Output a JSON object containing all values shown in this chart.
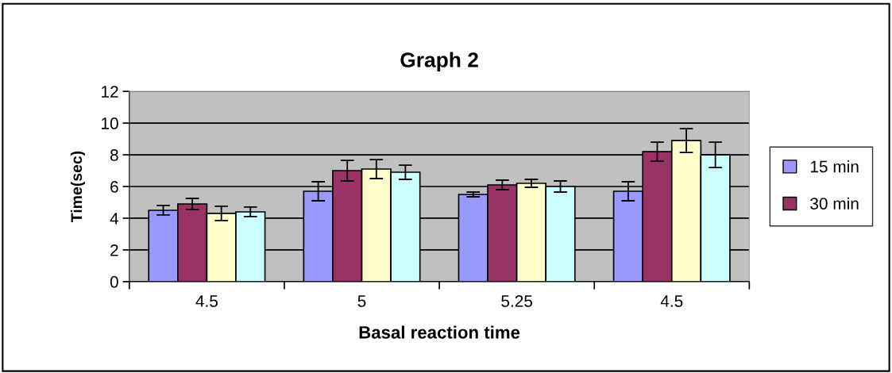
{
  "chart_data": {
    "type": "bar",
    "title": "Graph 2",
    "xlabel": "Basal reaction time",
    "ylabel": "Time(sec)",
    "categories": [
      "4.5",
      "5",
      "5.25",
      "4.5"
    ],
    "series": [
      {
        "name": "15 min",
        "color": "#9999ff",
        "values": [
          4.5,
          5.7,
          5.5,
          5.7
        ],
        "errors": [
          0.3,
          0.6,
          0.15,
          0.6
        ]
      },
      {
        "name": "30 min",
        "color": "#993366",
        "values": [
          4.9,
          7.0,
          6.1,
          8.2
        ],
        "errors": [
          0.35,
          0.65,
          0.3,
          0.6
        ]
      },
      {
        "color": "#ffffcc",
        "values": [
          4.3,
          7.1,
          6.2,
          8.9
        ],
        "errors": [
          0.45,
          0.6,
          0.25,
          0.75
        ]
      },
      {
        "color": "#ccffff",
        "values": [
          4.4,
          6.9,
          6.0,
          8.0
        ],
        "errors": [
          0.3,
          0.45,
          0.35,
          0.8
        ]
      }
    ],
    "ylim": [
      0,
      12
    ],
    "yticks": [
      0,
      2,
      4,
      6,
      8,
      10,
      12
    ],
    "grid": "y",
    "legend": "right"
  }
}
